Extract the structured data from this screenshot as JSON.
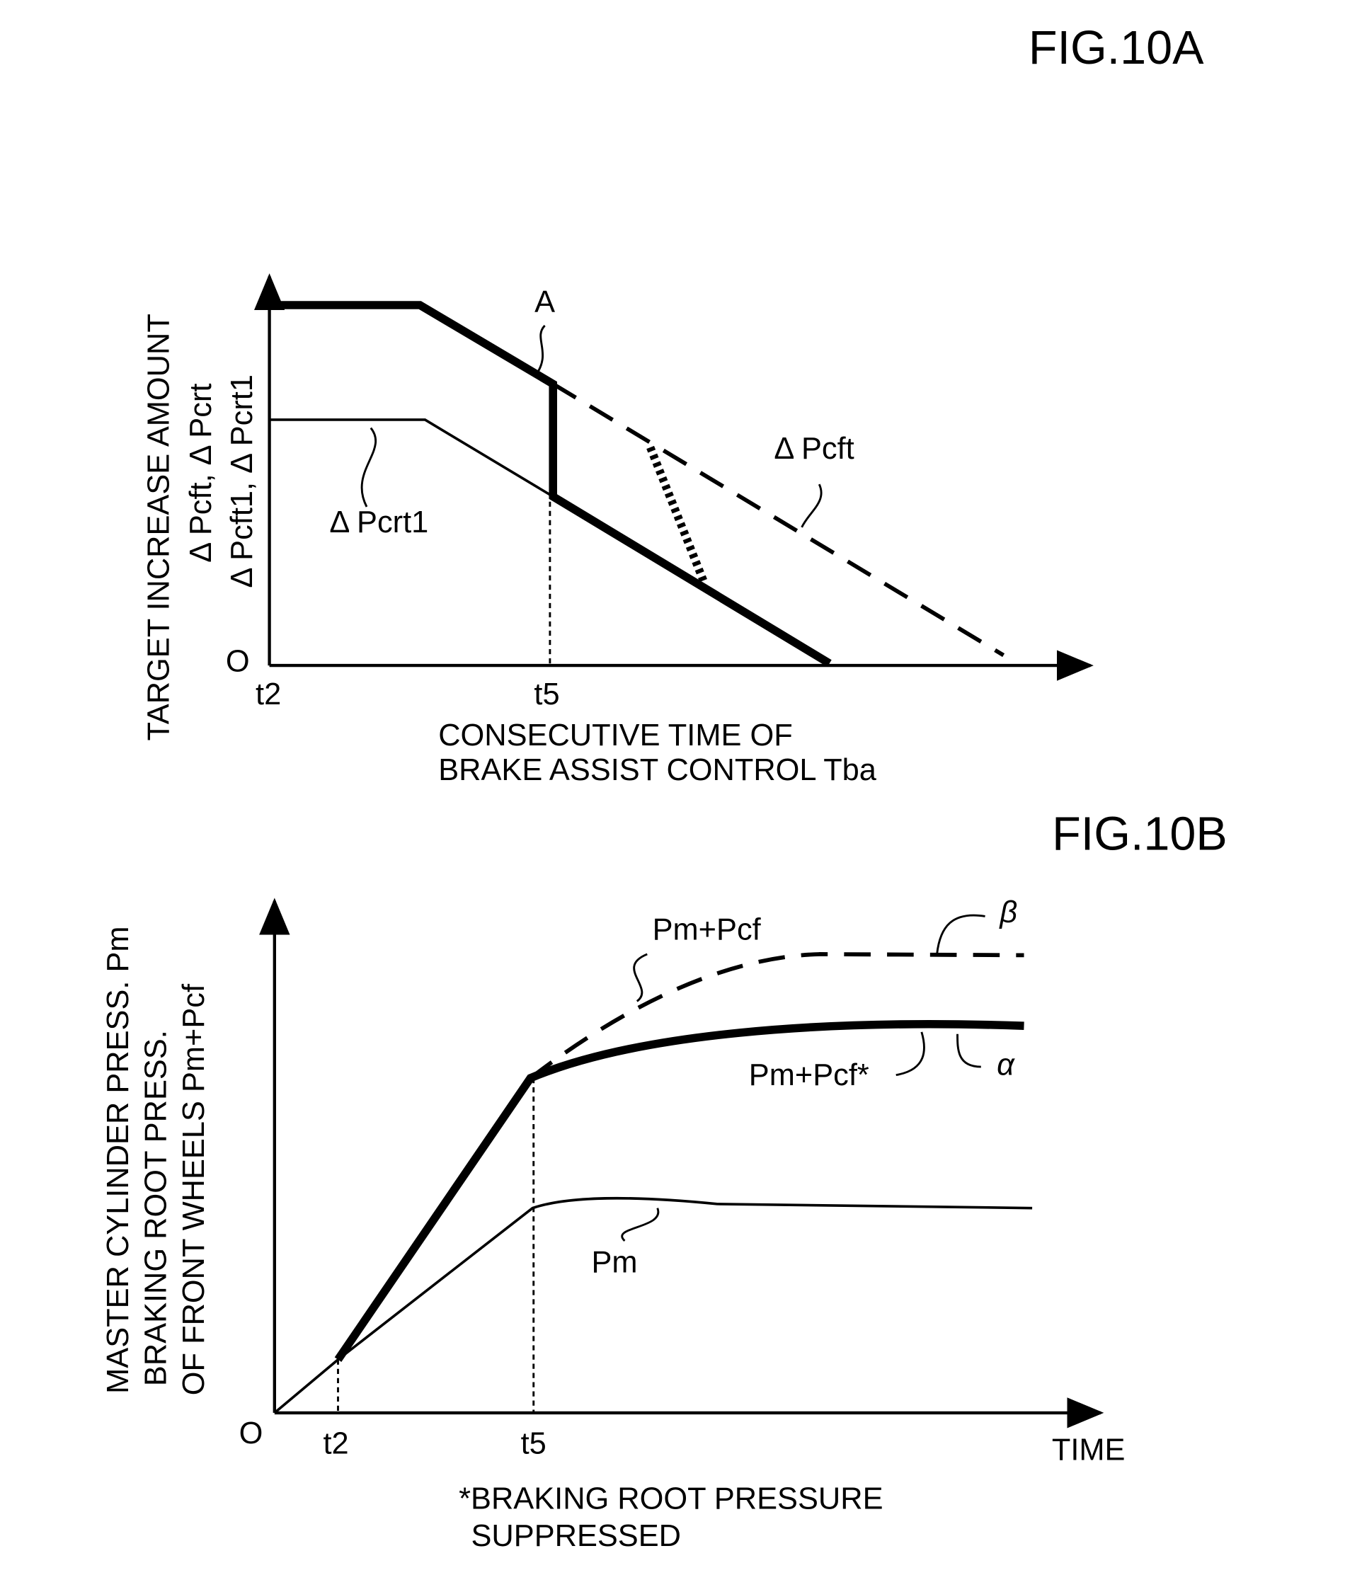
{
  "fig_a": {
    "title": "FIG.10A",
    "y_axis_label": [
      "TARGET INCREASE AMOUNT",
      "Δ Pcft,  Δ Pcrt",
      "Δ Pcft1,  Δ Pcrt1"
    ],
    "origin": "O",
    "x_ticks": [
      "t2",
      "t5"
    ],
    "x_axis_label": [
      "CONSECUTIVE TIME OF",
      "BRAKE ASSIST CONTROL Tba"
    ],
    "curve_labels": {
      "a": "A",
      "pcft": "Δ Pcft",
      "pcrt1": "Δ Pcrt1"
    }
  },
  "fig_b": {
    "title": "FIG.10B",
    "y_axis_label": [
      "MASTER CYLINDER PRESS.  Pm",
      "BRAKING ROOT PRESS.",
      "OF FRONT WHEELS  Pm+Pcf"
    ],
    "origin": "O",
    "x_ticks": [
      "t2",
      "t5"
    ],
    "x_axis_label": "TIME",
    "curve_labels": {
      "pm_pcf": "Pm+Pcf",
      "beta": "β",
      "pm_pcf_star": "Pm+Pcf*",
      "alpha": "α",
      "pm": "Pm"
    },
    "footnote": [
      "*BRAKING ROOT PRESSURE",
      "SUPPRESSED"
    ]
  }
}
